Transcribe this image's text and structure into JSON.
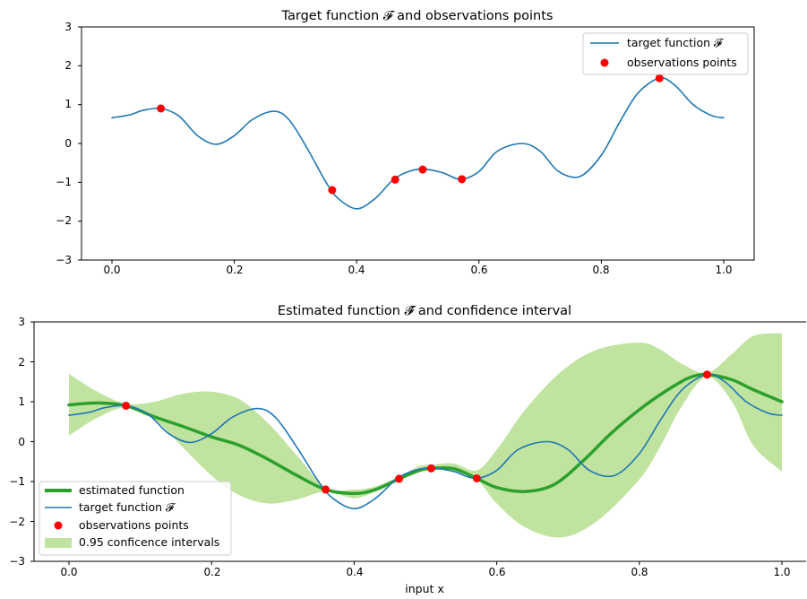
{
  "colors": {
    "target": "#1f77b4",
    "estimate": "#2ca02c",
    "observations": "#ff0000",
    "confidence": "#c1e3a0"
  },
  "top": {
    "title": "Target function 𝓕 and observations points",
    "legend": [
      "target function 𝓕",
      "observations points"
    ],
    "x_ticks": [
      "0.0",
      "0.2",
      "0.4",
      "0.6",
      "0.8",
      "1.0"
    ],
    "y_ticks": [
      "3",
      "2",
      "1",
      "0",
      "−1",
      "−2",
      "−3"
    ]
  },
  "bottom": {
    "title": "Estimated function 𝓕̂ and confidence interval",
    "xlabel": "input x",
    "legend": [
      "estimated function",
      "target function 𝓕",
      "observations points",
      "0.95 conficence intervals"
    ],
    "x_ticks": [
      "0.0",
      "0.2",
      "0.4",
      "0.6",
      "0.8",
      "1.0"
    ],
    "y_ticks": [
      "3",
      "2",
      "1",
      "0",
      "−1",
      "−2",
      "−3"
    ]
  },
  "chart_data": [
    {
      "type": "line",
      "title": "Target function 𝓕 and observations points",
      "xlim": [
        -0.05,
        1.05
      ],
      "ylim": [
        -3,
        3
      ],
      "legend_position": "top-right",
      "grid": false,
      "series": [
        {
          "name": "target function 𝓕",
          "kind": "line",
          "x": [
            0.0,
            0.03,
            0.05,
            0.08,
            0.11,
            0.14,
            0.17,
            0.2,
            0.23,
            0.265,
            0.29,
            0.32,
            0.35,
            0.37,
            0.4,
            0.43,
            0.46,
            0.485,
            0.51,
            0.54,
            0.57,
            0.6,
            0.63,
            0.67,
            0.7,
            0.73,
            0.765,
            0.8,
            0.83,
            0.86,
            0.895,
            0.92,
            0.95,
            0.98,
            1.0
          ],
          "y": [
            0.66,
            0.74,
            0.85,
            0.9,
            0.7,
            0.2,
            -0.02,
            0.2,
            0.62,
            0.83,
            0.6,
            -0.15,
            -1.0,
            -1.42,
            -1.68,
            -1.42,
            -0.93,
            -0.72,
            -0.66,
            -0.75,
            -0.92,
            -0.72,
            -0.2,
            0.0,
            -0.2,
            -0.72,
            -0.85,
            -0.3,
            0.55,
            1.3,
            1.68,
            1.5,
            1.0,
            0.72,
            0.66
          ]
        },
        {
          "name": "observations points",
          "kind": "scatter",
          "x": [
            0.08,
            0.36,
            0.463,
            0.508,
            0.572,
            0.895
          ],
          "y": [
            0.9,
            -1.2,
            -0.93,
            -0.67,
            -0.92,
            1.68
          ]
        }
      ]
    },
    {
      "type": "line",
      "title": "Estimated function 𝓕̂ and confidence interval",
      "xlabel": "input x",
      "xlim": [
        -0.05,
        1.05
      ],
      "ylim": [
        -3,
        3
      ],
      "legend_position": "bottom-left",
      "grid": false,
      "series": [
        {
          "name": "0.95 conficence intervals",
          "kind": "band",
          "x": [
            0.0,
            0.04,
            0.08,
            0.12,
            0.16,
            0.2,
            0.24,
            0.28,
            0.32,
            0.36,
            0.4,
            0.43,
            0.463,
            0.49,
            0.508,
            0.54,
            0.572,
            0.6,
            0.64,
            0.69,
            0.74,
            0.8,
            0.83,
            0.86,
            0.895,
            0.93,
            0.96,
            1.0
          ],
          "lower": [
            0.15,
            0.6,
            0.85,
            0.55,
            -0.15,
            -0.85,
            -1.35,
            -1.55,
            -1.45,
            -1.25,
            -1.42,
            -1.25,
            -0.98,
            -0.78,
            -0.7,
            -0.76,
            -0.95,
            -1.55,
            -2.15,
            -2.4,
            -2.0,
            -0.95,
            -0.1,
            0.9,
            1.62,
            1.0,
            -0.1,
            -0.75
          ],
          "upper": [
            1.7,
            1.25,
            0.95,
            1.0,
            1.2,
            1.25,
            1.05,
            0.45,
            -0.35,
            -1.15,
            -1.2,
            -1.12,
            -0.88,
            -0.62,
            -0.58,
            -0.55,
            -0.72,
            -0.2,
            0.8,
            1.75,
            2.3,
            2.48,
            2.3,
            1.95,
            1.72,
            2.2,
            2.65,
            2.72
          ]
        },
        {
          "name": "estimated function",
          "kind": "line",
          "x": [
            0.0,
            0.04,
            0.08,
            0.12,
            0.16,
            0.2,
            0.24,
            0.28,
            0.32,
            0.36,
            0.4,
            0.43,
            0.463,
            0.49,
            0.508,
            0.54,
            0.572,
            0.6,
            0.64,
            0.68,
            0.72,
            0.76,
            0.8,
            0.84,
            0.87,
            0.895,
            0.93,
            0.96,
            1.0
          ],
          "y": [
            0.92,
            0.97,
            0.9,
            0.62,
            0.38,
            0.12,
            -0.1,
            -0.45,
            -0.85,
            -1.2,
            -1.3,
            -1.2,
            -0.93,
            -0.73,
            -0.67,
            -0.68,
            -0.92,
            -1.15,
            -1.25,
            -1.08,
            -0.5,
            0.2,
            0.8,
            1.3,
            1.6,
            1.68,
            1.55,
            1.3,
            1.0
          ]
        },
        {
          "name": "target function 𝓕",
          "kind": "line",
          "x": [
            0.0,
            0.03,
            0.05,
            0.08,
            0.11,
            0.14,
            0.17,
            0.2,
            0.23,
            0.265,
            0.29,
            0.32,
            0.35,
            0.37,
            0.4,
            0.43,
            0.46,
            0.485,
            0.51,
            0.54,
            0.57,
            0.6,
            0.63,
            0.67,
            0.7,
            0.73,
            0.765,
            0.8,
            0.83,
            0.86,
            0.895,
            0.92,
            0.95,
            0.98,
            1.0
          ],
          "y": [
            0.66,
            0.74,
            0.85,
            0.9,
            0.7,
            0.2,
            -0.02,
            0.2,
            0.62,
            0.83,
            0.6,
            -0.15,
            -1.0,
            -1.42,
            -1.68,
            -1.42,
            -0.93,
            -0.72,
            -0.66,
            -0.75,
            -0.92,
            -0.72,
            -0.2,
            0.0,
            -0.2,
            -0.72,
            -0.85,
            -0.3,
            0.55,
            1.3,
            1.68,
            1.5,
            1.0,
            0.72,
            0.66
          ]
        },
        {
          "name": "observations points",
          "kind": "scatter",
          "x": [
            0.08,
            0.36,
            0.463,
            0.508,
            0.572,
            0.895
          ],
          "y": [
            0.9,
            -1.2,
            -0.93,
            -0.67,
            -0.92,
            1.68
          ]
        }
      ]
    }
  ]
}
